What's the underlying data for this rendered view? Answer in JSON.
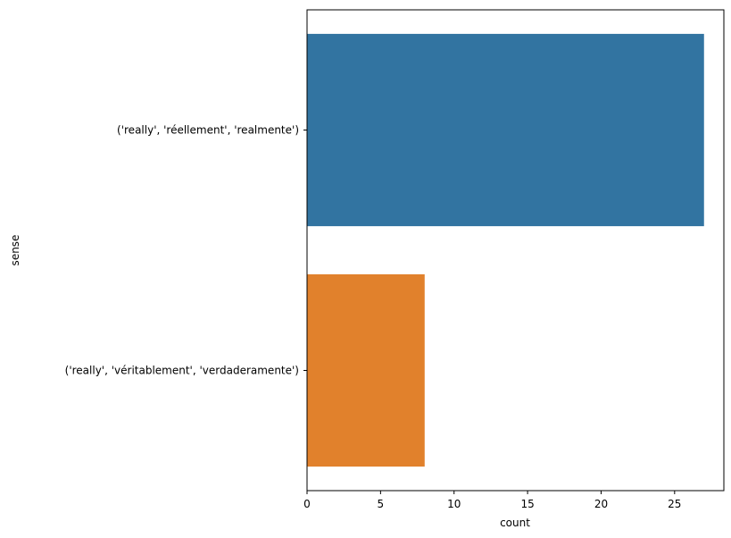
{
  "chart_data": {
    "type": "bar",
    "orientation": "horizontal",
    "categories": [
      "('really', 'réellement', 'realmente')",
      "('really', 'véritablement', 'verdaderamente')"
    ],
    "values": [
      27,
      8
    ],
    "colors": [
      "#3274a1",
      "#e1812c"
    ],
    "xlabel": "count",
    "ylabel": "sense",
    "xlim": [
      0,
      28.35
    ],
    "xticks": [
      0,
      5,
      10,
      15,
      20,
      25
    ],
    "grid": false,
    "legend": "none"
  }
}
